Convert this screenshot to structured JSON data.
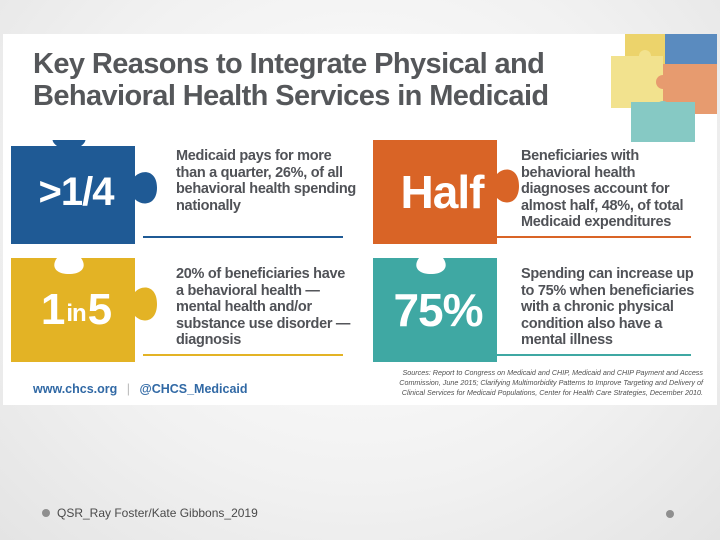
{
  "infographic": {
    "title_line1": "Key Reasons to Integrate Physical and",
    "title_line2": "Behavioral Health Services in Medicaid",
    "colors": {
      "blue": "#1f5a95",
      "orange": "#d96426",
      "yellow": "#e3b325",
      "teal": "#3fa8a3"
    },
    "stats": [
      {
        "big": ">1/4",
        "text": "Medicaid pays for more than a quarter, 26%, of all behavioral health spending nationally",
        "color": "#1f5a95"
      },
      {
        "big": "Half",
        "text": "Beneficiaries with behavioral health diagnoses account for almost half, 48%, of total Medicaid expenditures",
        "color": "#d96426"
      },
      {
        "big_pre": "1",
        "big_mid": "in",
        "big_post": "5",
        "text": "20% of beneficiaries have a behavioral health — mental health and/or substance use disorder — diagnosis",
        "color": "#e3b325"
      },
      {
        "big": "75%",
        "text": "Spending can increase up to 75% when beneficiaries with a chronic physical condition also have a mental illness",
        "color": "#3fa8a3"
      }
    ],
    "website": "www.chcs.org",
    "separator": "|",
    "twitter": "@CHCS_Medicaid",
    "sources": "Sources: Report to Congress on Medicaid and CHIP, Medicaid and CHIP Payment and Access Commission, June 2015; Clarifying Multimorbidity Patterns to Improve Targeting and Delivery of Clinical Services for Medicaid Populations, Center for Health Care Strategies, December 2010."
  },
  "slide": {
    "footer": "QSR_Ray Foster/Kate Gibbons_2019"
  }
}
